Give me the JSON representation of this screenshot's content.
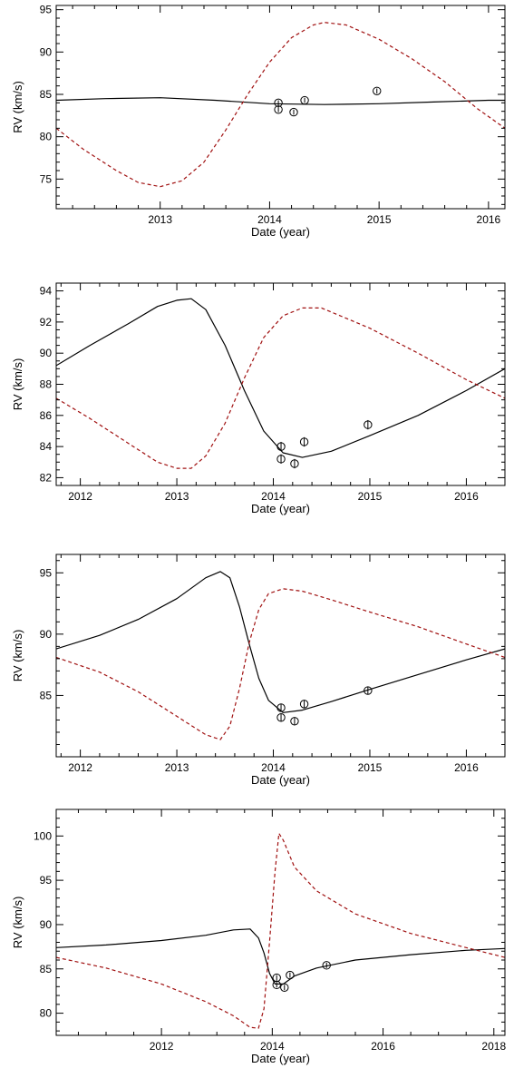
{
  "chart_data": [
    {
      "type": "line",
      "title": "",
      "xlabel": "Date (year)",
      "ylabel": "RV (km/s)",
      "xlim": [
        2012.05,
        2016.15
      ],
      "ylim": [
        71.5,
        95.5
      ],
      "xticks": [
        2013,
        2014,
        2015,
        2016
      ],
      "xtick_labels": [
        "2013",
        "2014",
        "2015",
        "2016"
      ],
      "yticks": [
        75,
        80,
        85,
        90,
        95
      ],
      "ytick_labels": [
        "75",
        "80",
        "85",
        "90",
        "95"
      ],
      "grid": false,
      "legend": "none",
      "series": [
        {
          "style": "solid",
          "color": "#000000",
          "x": [
            2012.05,
            2012.5,
            2013.0,
            2013.5,
            2014.0,
            2014.5,
            2015.0,
            2015.5,
            2016.0,
            2016.15
          ],
          "y": [
            84.3,
            84.5,
            84.6,
            84.3,
            83.9,
            83.8,
            83.9,
            84.1,
            84.3,
            84.3
          ]
        },
        {
          "style": "dashed",
          "color": "#a01010",
          "x": [
            2012.05,
            2012.3,
            2012.6,
            2012.8,
            2013.0,
            2013.2,
            2013.4,
            2013.6,
            2013.8,
            2014.0,
            2014.2,
            2014.4,
            2014.5,
            2014.7,
            2015.0,
            2015.3,
            2015.6,
            2015.9,
            2016.15
          ],
          "y": [
            81.0,
            78.5,
            76.0,
            74.6,
            74.1,
            74.8,
            77.0,
            80.8,
            85.0,
            88.8,
            91.7,
            93.2,
            93.5,
            93.2,
            91.5,
            89.2,
            86.5,
            83.3,
            81.0
          ]
        }
      ],
      "points": {
        "x": [
          2014.08,
          2014.08,
          2014.22,
          2014.32,
          2014.98
        ],
        "y": [
          84.0,
          83.2,
          82.9,
          84.3,
          85.4
        ],
        "err": [
          0.3,
          0.3,
          0.3,
          0.3,
          0.3
        ]
      }
    },
    {
      "type": "line",
      "title": "",
      "xlabel": "Date (year)",
      "ylabel": "RV (km/s)",
      "xlim": [
        2011.75,
        2016.4
      ],
      "ylim": [
        81.5,
        94.5
      ],
      "xticks": [
        2012,
        2013,
        2014,
        2015,
        2016
      ],
      "xtick_labels": [
        "2012",
        "2013",
        "2014",
        "2015",
        "2016"
      ],
      "yticks": [
        82,
        84,
        86,
        88,
        90,
        92,
        94
      ],
      "ytick_labels": [
        "82",
        "84",
        "86",
        "88",
        "90",
        "92",
        "94"
      ],
      "grid": false,
      "legend": "none",
      "series": [
        {
          "style": "solid",
          "color": "#000000",
          "x": [
            2011.75,
            2012.1,
            2012.5,
            2012.8,
            2013.0,
            2013.15,
            2013.3,
            2013.5,
            2013.7,
            2013.9,
            2014.1,
            2014.3,
            2014.6,
            2015.0,
            2015.5,
            2016.0,
            2016.4
          ],
          "y": [
            89.2,
            90.5,
            91.9,
            93.0,
            93.4,
            93.5,
            92.8,
            90.5,
            87.6,
            85.0,
            83.6,
            83.3,
            83.7,
            84.7,
            86.0,
            87.6,
            89.0
          ]
        },
        {
          "style": "dashed",
          "color": "#a01010",
          "x": [
            2011.75,
            2012.1,
            2012.5,
            2012.8,
            2013.0,
            2013.15,
            2013.3,
            2013.5,
            2013.7,
            2013.9,
            2014.1,
            2014.3,
            2014.5,
            2015.0,
            2015.5,
            2016.0,
            2016.4
          ],
          "y": [
            87.1,
            85.8,
            84.2,
            83.0,
            82.6,
            82.6,
            83.4,
            85.5,
            88.4,
            91.0,
            92.4,
            92.9,
            92.9,
            91.6,
            90.0,
            88.3,
            87.1
          ]
        }
      ],
      "points": {
        "x": [
          2014.08,
          2014.08,
          2014.22,
          2014.32,
          2014.98
        ],
        "y": [
          84.0,
          83.2,
          82.9,
          84.3,
          85.4
        ],
        "err": [
          0.3,
          0.3,
          0.3,
          0.3,
          0.3
        ]
      }
    },
    {
      "type": "line",
      "title": "",
      "xlabel": "Date (year)",
      "ylabel": "RV (km/s)",
      "xlim": [
        2011.75,
        2016.4
      ],
      "ylim": [
        80.0,
        96.5
      ],
      "xticks": [
        2012,
        2013,
        2014,
        2015,
        2016
      ],
      "xtick_labels": [
        "2012",
        "2013",
        "2014",
        "2015",
        "2016"
      ],
      "yticks": [
        85,
        90,
        95
      ],
      "ytick_labels": [
        "85",
        "90",
        "95"
      ],
      "grid": false,
      "legend": "none",
      "series": [
        {
          "style": "solid",
          "color": "#000000",
          "x": [
            2011.75,
            2012.2,
            2012.6,
            2013.0,
            2013.3,
            2013.45,
            2013.55,
            2013.65,
            2013.75,
            2013.85,
            2013.95,
            2014.1,
            2014.3,
            2014.6,
            2015.0,
            2015.5,
            2016.0,
            2016.4
          ],
          "y": [
            88.8,
            89.9,
            91.2,
            92.9,
            94.6,
            95.1,
            94.6,
            92.2,
            89.2,
            86.4,
            84.6,
            83.6,
            83.8,
            84.5,
            85.5,
            86.7,
            87.9,
            88.8
          ]
        },
        {
          "style": "dashed",
          "color": "#a01010",
          "x": [
            2011.75,
            2012.2,
            2012.6,
            2013.0,
            2013.3,
            2013.45,
            2013.55,
            2013.65,
            2013.75,
            2013.85,
            2013.95,
            2014.1,
            2014.3,
            2014.6,
            2015.0,
            2015.5,
            2016.0,
            2016.4
          ],
          "y": [
            88.1,
            86.9,
            85.3,
            83.3,
            81.8,
            81.4,
            82.5,
            85.6,
            89.3,
            92.0,
            93.3,
            93.7,
            93.5,
            92.8,
            91.8,
            90.6,
            89.2,
            88.1
          ]
        }
      ],
      "points": {
        "x": [
          2014.08,
          2014.08,
          2014.22,
          2014.32,
          2014.98
        ],
        "y": [
          84.0,
          83.2,
          82.9,
          84.3,
          85.4
        ],
        "err": [
          0.3,
          0.3,
          0.3,
          0.3,
          0.3
        ]
      }
    },
    {
      "type": "line",
      "title": "",
      "xlabel": "Date (year)",
      "ylabel": "RV (km/s)",
      "xlim": [
        2010.1,
        2018.2
      ],
      "ylim": [
        77.5,
        103.0
      ],
      "xticks": [
        2012,
        2014,
        2016,
        2018
      ],
      "xtick_labels": [
        "2012",
        "2014",
        "2016",
        "2018"
      ],
      "yticks": [
        80,
        85,
        90,
        95,
        100
      ],
      "ytick_labels": [
        "80",
        "85",
        "90",
        "95",
        "100"
      ],
      "grid": false,
      "legend": "none",
      "series": [
        {
          "style": "solid",
          "color": "#000000",
          "x": [
            2010.1,
            2011.0,
            2012.0,
            2012.8,
            2013.3,
            2013.6,
            2013.75,
            2013.85,
            2013.95,
            2014.05,
            2014.2,
            2014.4,
            2014.8,
            2015.5,
            2016.5,
            2017.5,
            2018.2
          ],
          "y": [
            87.4,
            87.7,
            88.2,
            88.8,
            89.4,
            89.5,
            88.5,
            86.8,
            84.5,
            83.3,
            83.3,
            84.2,
            85.1,
            86.0,
            86.6,
            87.1,
            87.3
          ]
        },
        {
          "style": "dashed",
          "color": "#a01010",
          "x": [
            2010.1,
            2011.0,
            2012.0,
            2012.8,
            2013.3,
            2013.6,
            2013.75,
            2013.85,
            2013.95,
            2014.05,
            2014.12,
            2014.2,
            2014.4,
            2014.8,
            2015.5,
            2016.5,
            2017.5,
            2018.2
          ],
          "y": [
            86.3,
            85.1,
            83.3,
            81.3,
            79.7,
            78.4,
            78.3,
            80.5,
            88.0,
            96.0,
            100.3,
            99.5,
            96.5,
            93.8,
            91.2,
            89.0,
            87.4,
            86.3
          ]
        }
      ],
      "points": {
        "x": [
          2014.08,
          2014.08,
          2014.22,
          2014.32,
          2014.98
        ],
        "y": [
          84.0,
          83.2,
          82.9,
          84.3,
          85.4
        ],
        "err": [
          0.3,
          0.3,
          0.3,
          0.3,
          0.3
        ]
      }
    }
  ]
}
